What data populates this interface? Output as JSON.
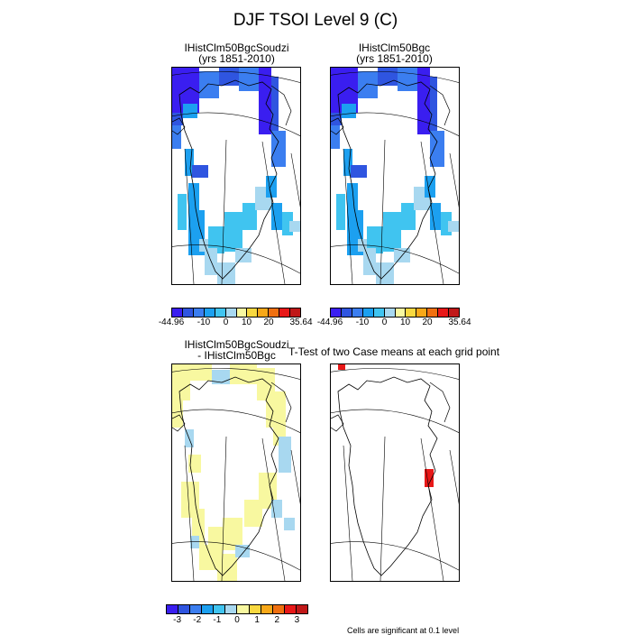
{
  "title": "DJF TSOI Level 9 (C)",
  "panels": {
    "top_left": {
      "title_line1": "IHistClm50BgcSoudzi",
      "title_line2": "(yrs 1851-2010)"
    },
    "top_right": {
      "title_line1": "IHistClm50Bgc",
      "title_line2": "(yrs 1851-2010)"
    },
    "bottom_left": {
      "title_line1": "IHistClm50BgcSoudzi",
      "title_line2": "- IHistClm50Bgc"
    },
    "bottom_right": {
      "title_line1": "T-Test of two Case means at each grid point",
      "footnote": "Cells are significant at 0.1 level"
    }
  },
  "colorbars": {
    "absolute": {
      "colors": [
        "#3a1ef0",
        "#2f55e0",
        "#3b7ef0",
        "#1ca0f0",
        "#40c4f0",
        "#a8d8f0",
        "#f8f8a0",
        "#f8d840",
        "#f8a818",
        "#f07010",
        "#e81818",
        "#c01818"
      ],
      "tick_labels": [
        "-44.96",
        "-10",
        "0",
        "10",
        "20",
        "35.64"
      ]
    },
    "difference": {
      "colors": [
        "#3a1ef0",
        "#2f55e0",
        "#3b7ef0",
        "#1ca0f0",
        "#40c4f0",
        "#a8d8f0",
        "#f8f8a0",
        "#f8d840",
        "#f8a818",
        "#f07010",
        "#e81818",
        "#c01818"
      ],
      "tick_labels": [
        "-3",
        "-2",
        "-1",
        "0",
        "1",
        "2",
        "3"
      ]
    }
  },
  "map": {
    "region": "Greenland",
    "variable": "TSOI",
    "season": "DJF",
    "land_color_note": "colored grid cells on coast only; interior blank",
    "significance_color": "#e81818"
  }
}
